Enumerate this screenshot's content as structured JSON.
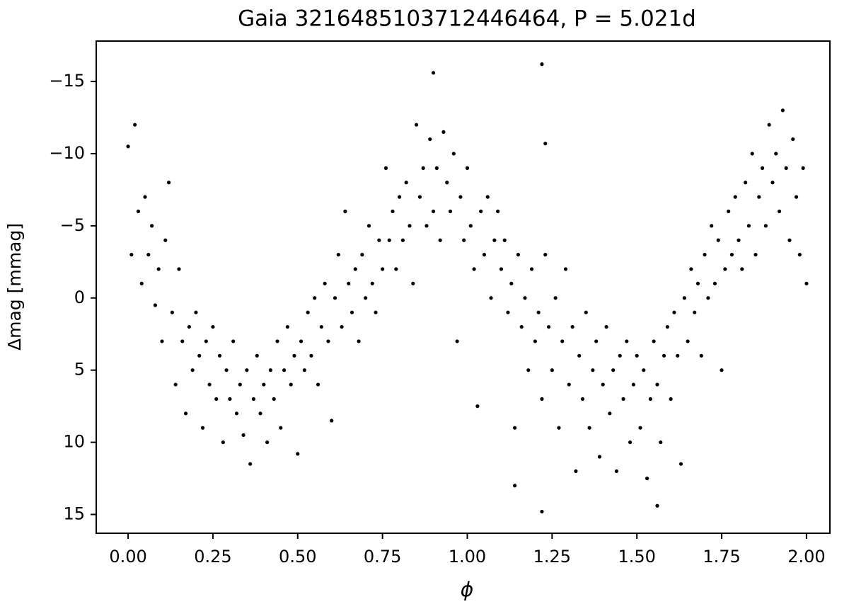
{
  "chart_data": {
    "type": "scatter",
    "title": "Gaia 3216485103712446464, P = 5.021d",
    "xlabel": "ϕ",
    "ylabel": "Δmag [mmag]",
    "color": "#000000",
    "y_inverted": true,
    "xlim": [
      -0.094,
      2.069
    ],
    "ylim": [
      -17.8,
      16.3
    ],
    "xticks": [
      {
        "value": 0,
        "label": "0.00"
      },
      {
        "value": 0.25,
        "label": "0.25"
      },
      {
        "value": 0.5,
        "label": "0.50"
      },
      {
        "value": 0.75,
        "label": "0.75"
      },
      {
        "value": 1,
        "label": "1.00"
      },
      {
        "value": 1.25,
        "label": "1.25"
      },
      {
        "value": 1.5,
        "label": "1.50"
      },
      {
        "value": 1.75,
        "label": "1.75"
      },
      {
        "value": 2,
        "label": "2.00"
      }
    ],
    "yticks": [
      {
        "value": -15,
        "label": "−15"
      },
      {
        "value": -10,
        "label": "−10"
      },
      {
        "value": -5,
        "label": "−5"
      },
      0,
      5,
      10,
      15
    ],
    "x": [
      0,
      0.01,
      0.02,
      0.03,
      0.04,
      0.05,
      0.06,
      0.07,
      0.08,
      0.09,
      0.1,
      0.11,
      0.12,
      0.13,
      0.14,
      0.15,
      0.16,
      0.17,
      0.18,
      0.19,
      0.2,
      0.21,
      0.22,
      0.23,
      0.24,
      0.25,
      0.26,
      0.27,
      0.28,
      0.29,
      0.3,
      0.31,
      0.32,
      0.33,
      0.34,
      0.35,
      0.36,
      0.37,
      0.38,
      0.39,
      0.4,
      0.41,
      0.42,
      0.43,
      0.44,
      0.45,
      0.46,
      0.47,
      0.48,
      0.49,
      0.5,
      0.51,
      0.52,
      0.53,
      0.54,
      0.55,
      0.56,
      0.57,
      0.58,
      0.59,
      0.6,
      0.61,
      0.62,
      0.63,
      0.64,
      0.65,
      0.66,
      0.67,
      0.68,
      0.69,
      0.7,
      0.71,
      0.72,
      0.73,
      0.74,
      0.75,
      0.76,
      0.77,
      0.78,
      0.79,
      0.8,
      0.81,
      0.82,
      0.83,
      0.84,
      0.85,
      0.86,
      0.87,
      0.88,
      0.89,
      0.9,
      0.91,
      0.92,
      0.93,
      0.94,
      0.95,
      0.96,
      0.97,
      0.98,
      0.99,
      1,
      1.01,
      1.02,
      1.03,
      1.04,
      1.05,
      1.06,
      1.07,
      1.08,
      1.09,
      1.1,
      1.11,
      1.12,
      1.13,
      1.14,
      1.15,
      1.16,
      1.17,
      1.18,
      1.19,
      1.2,
      1.21,
      1.22,
      1.23,
      1.24,
      1.25,
      1.26,
      1.27,
      1.28,
      1.29,
      1.3,
      1.31,
      1.32,
      1.33,
      1.34,
      1.35,
      1.36,
      1.37,
      1.38,
      1.39,
      1.4,
      1.41,
      1.42,
      1.43,
      1.44,
      1.45,
      1.46,
      1.47,
      1.48,
      1.49,
      1.5,
      1.51,
      1.52,
      1.53,
      1.54,
      1.55,
      1.56,
      1.57,
      1.58,
      1.59,
      1.6,
      1.61,
      1.62,
      1.63,
      1.64,
      1.65,
      1.66,
      1.67,
      1.68,
      1.69,
      1.7,
      1.71,
      1.72,
      1.73,
      1.74,
      1.75,
      1.76,
      1.77,
      1.78,
      1.79,
      1.8,
      1.81,
      1.82,
      1.83,
      1.84,
      1.85,
      1.86,
      1.87,
      1.88,
      1.89,
      1.9,
      1.91,
      1.92,
      1.93,
      1.94,
      1.95,
      1.96,
      1.97,
      1.98,
      1.99,
      2,
      0.9,
      1.22,
      1.23,
      1.22,
      1.56,
      1.14
    ],
    "y": [
      -10.5,
      -3,
      -12,
      -6,
      -1,
      -7,
      -3,
      -5,
      0.5,
      -2,
      3,
      -4,
      -8,
      1,
      6,
      -2,
      3,
      8,
      2,
      5,
      1,
      4,
      9,
      3,
      6,
      2,
      7,
      4,
      10,
      5,
      7,
      3,
      8,
      6,
      9.5,
      5,
      11.5,
      7,
      4,
      8,
      6,
      10,
      5,
      7,
      3,
      9,
      5,
      2,
      6,
      4,
      10.8,
      3,
      5,
      1,
      4,
      0,
      6,
      2,
      -1,
      3,
      8.5,
      0,
      -3,
      2,
      -6,
      -1,
      1,
      -2,
      3,
      -3,
      0,
      -5,
      -1,
      1,
      -4,
      -2,
      -9,
      -4,
      -6,
      -2,
      -7,
      -4,
      -8,
      -5,
      -1,
      -12,
      -7,
      -9,
      -5,
      -11,
      -6,
      -9,
      -4,
      -11.5,
      -8,
      -6,
      -10,
      3,
      -7,
      -4,
      -9,
      -5,
      -2,
      7.5,
      -6,
      -3,
      -7,
      0,
      -4,
      -6,
      -2,
      -4,
      1,
      -1,
      9,
      -3,
      2,
      0,
      5,
      -2,
      3,
      1,
      7,
      -3,
      2,
      5,
      0,
      9,
      3,
      -2,
      6,
      2,
      12,
      4,
      7,
      1,
      9,
      5,
      3,
      11,
      6,
      2,
      8,
      5,
      12,
      4,
      7,
      3,
      10,
      6,
      4,
      9,
      5,
      12.5,
      7,
      3,
      6,
      10,
      4,
      2,
      7,
      1,
      4,
      11.5,
      0,
      3,
      -2,
      1,
      -1,
      4,
      -3,
      0,
      -5,
      -1,
      -4,
      5,
      -2,
      -6,
      -3,
      -7,
      -4,
      -2,
      -8,
      -5,
      -10,
      -3,
      -7,
      -9,
      -5,
      -12,
      -8,
      -10,
      -6,
      -13,
      -9,
      -4,
      -11,
      -7,
      -3,
      -9,
      -1,
      -15.6,
      -16.2,
      -10.7,
      14.8,
      14.4,
      13
    ]
  }
}
